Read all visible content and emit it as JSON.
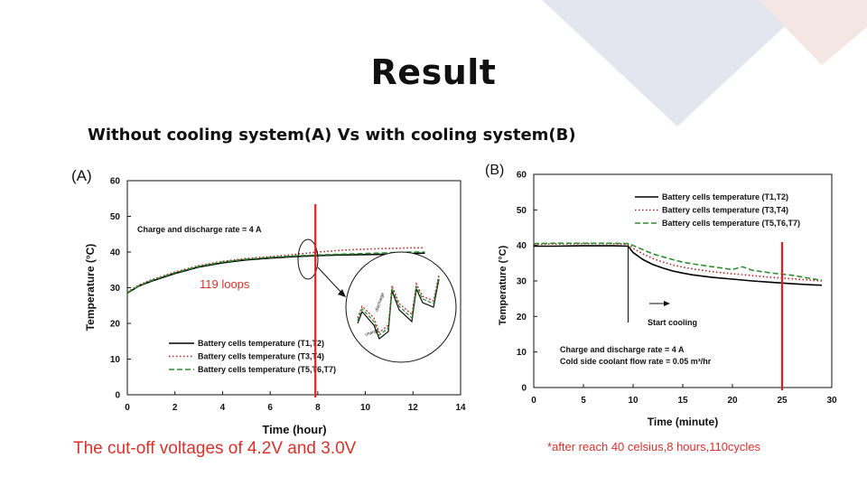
{
  "slide": {
    "title": "Result",
    "subtitle": "Without cooling system(A) Vs with cooling system(B)",
    "note_a": "The cut-off voltages of 4.2V and 3.0V",
    "note_b": "*after reach 40 celsius,8 hours,110cycles",
    "loops_label": "119 loops",
    "accent_color": "#d7322c"
  },
  "chart_data": [
    {
      "panel_label": "(A)",
      "type": "line",
      "xlabel": "Time (hour)",
      "ylabel": "Temperature (°C)",
      "xlim": [
        0,
        14
      ],
      "ylim": [
        0,
        60
      ],
      "xticks": [
        0,
        2,
        4,
        6,
        8,
        10,
        12,
        14
      ],
      "yticks": [
        0,
        10,
        20,
        30,
        40,
        50,
        60
      ],
      "annotation": "Charge and discharge rate = 4 A",
      "inset_labels": [
        "discharge",
        "charge"
      ],
      "vline_x": 7.9,
      "legend_position": "bottom-center",
      "series": [
        {
          "name": "Battery cells temperature (T1,T2)",
          "style": "solid",
          "color": "#000000",
          "x": [
            0,
            0.5,
            1,
            2,
            3,
            4,
            5,
            6,
            7,
            8,
            9,
            10,
            11,
            12,
            12.5
          ],
          "y": [
            28.5,
            30.5,
            31.8,
            34,
            35.8,
            37,
            37.8,
            38.3,
            38.7,
            39,
            39.2,
            39.3,
            39.4,
            39.6,
            39.7
          ]
        },
        {
          "name": "Battery cells temperature (T3,T4)",
          "style": "dotted",
          "color": "#b22222",
          "x": [
            0,
            0.5,
            1,
            2,
            3,
            4,
            5,
            6,
            7,
            8,
            9,
            10,
            11,
            12,
            12.5
          ],
          "y": [
            28.8,
            30.8,
            32.2,
            34.4,
            36.2,
            37.4,
            38.2,
            38.7,
            39.3,
            40,
            40.5,
            40.8,
            41,
            41.2,
            41.2
          ]
        },
        {
          "name": "Battery cells temperature (T5,T6,T7)",
          "style": "dashed",
          "color": "#2e8b2e",
          "x": [
            0,
            0.5,
            1,
            2,
            3,
            4,
            5,
            6,
            7,
            8,
            9,
            10,
            11,
            12,
            12.5
          ],
          "y": [
            28.6,
            30.6,
            32,
            34.2,
            36,
            37.2,
            38,
            38.5,
            38.9,
            39.2,
            39.4,
            39.6,
            39.8,
            40,
            40
          ]
        }
      ]
    },
    {
      "panel_label": "(B)",
      "type": "line",
      "xlabel": "Time (minute)",
      "ylabel": "Temperature (°C)",
      "xlim": [
        0,
        30
      ],
      "ylim": [
        0,
        60
      ],
      "xticks": [
        0,
        5,
        10,
        15,
        20,
        25,
        30
      ],
      "yticks": [
        0,
        10,
        20,
        30,
        40,
        50,
        60
      ],
      "annotation_lines": [
        "Charge and discharge rate = 4 A",
        "Cold side coolant flow rate = 0.05 m³/hr"
      ],
      "arrow_label": "Start cooling",
      "cooling_start_x": 9.5,
      "vline_x": 25,
      "legend_position": "top-right",
      "series": [
        {
          "name": "Battery cells temperature (T1,T2)",
          "style": "solid",
          "color": "#000000",
          "x": [
            0,
            2,
            5,
            8,
            9.5,
            10,
            11,
            12,
            13,
            14,
            15,
            16,
            18,
            20,
            22,
            24,
            26,
            28,
            29
          ],
          "y": [
            39.8,
            39.8,
            39.9,
            39.9,
            39.8,
            38,
            36,
            34.6,
            33.6,
            32.8,
            32.2,
            31.7,
            31,
            30.5,
            30,
            29.6,
            29.2,
            28.9,
            28.8
          ]
        },
        {
          "name": "Battery cells temperature (T3,T4)",
          "style": "dotted",
          "color": "#b22222",
          "x": [
            0,
            2,
            5,
            8,
            9.5,
            10,
            11,
            12,
            13,
            14,
            15,
            16,
            18,
            20,
            22,
            24,
            26,
            28,
            29
          ],
          "y": [
            40.3,
            40.4,
            40.5,
            40.5,
            40.3,
            39.2,
            37.6,
            36.3,
            35.3,
            34.5,
            33.9,
            33.4,
            32.6,
            32,
            31.5,
            31,
            30.6,
            30.2,
            30
          ]
        },
        {
          "name": "Battery cells temperature (T5,T6,T7)",
          "style": "dashed",
          "color": "#2e8b2e",
          "x": [
            0,
            2,
            5,
            8,
            9.5,
            10,
            11,
            12,
            13,
            14,
            15,
            16,
            18,
            20,
            21,
            22,
            24,
            26,
            28,
            29
          ],
          "y": [
            40.5,
            40.6,
            40.6,
            40.6,
            40.5,
            40,
            38.8,
            37.6,
            36.8,
            36,
            35.3,
            34.8,
            34,
            33.2,
            34,
            33,
            32.2,
            31.6,
            30.6,
            30.2
          ]
        }
      ]
    }
  ]
}
